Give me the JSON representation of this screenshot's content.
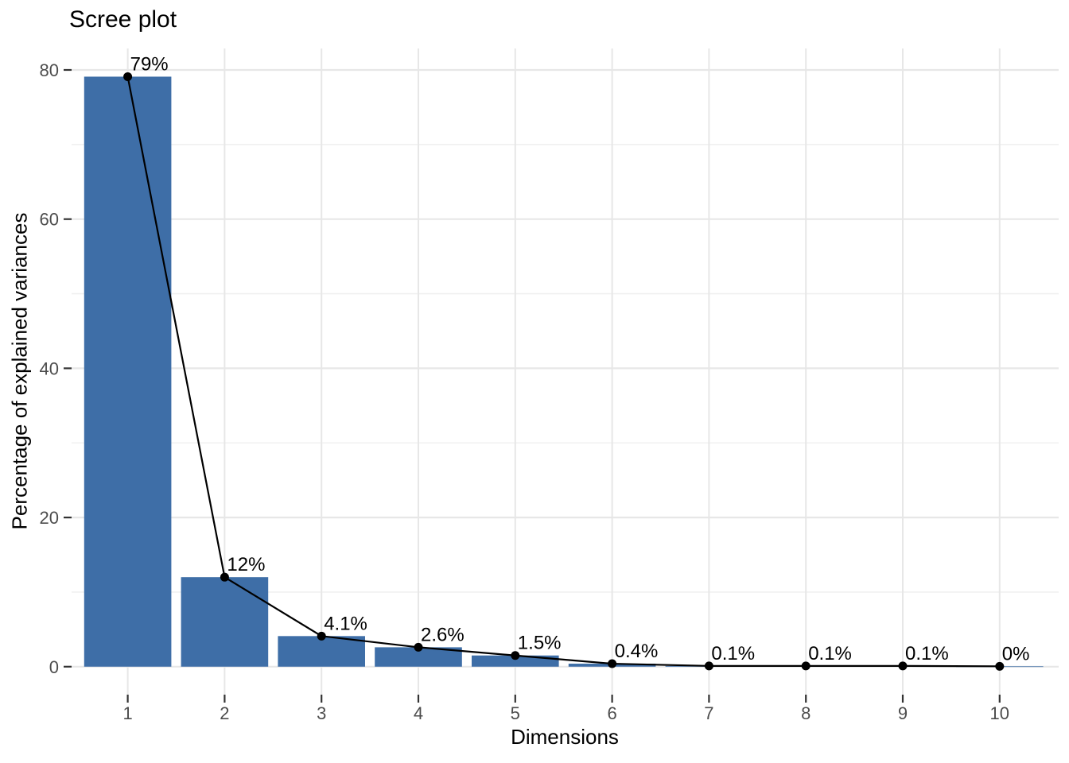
{
  "chart_data": {
    "type": "bar+line",
    "title": "Scree plot",
    "xlabel": "Dimensions",
    "ylabel": "Percentage of explained variances",
    "categories": [
      "1",
      "2",
      "3",
      "4",
      "5",
      "6",
      "7",
      "8",
      "9",
      "10"
    ],
    "values": [
      79.1,
      12,
      4.1,
      2.6,
      1.5,
      0.4,
      0.1,
      0.1,
      0.1,
      0.05
    ],
    "point_labels": [
      "79%",
      "12%",
      "4.1%",
      "2.6%",
      "1.5%",
      "0.4%",
      "0.1%",
      "0.1%",
      "0.1%",
      "0%"
    ],
    "y_ticks": [
      0,
      20,
      40,
      60,
      80
    ],
    "y_minor_gridlines": [
      10,
      30,
      50,
      70
    ],
    "ylim": [
      0,
      83
    ],
    "bar_width_fraction": 0.9,
    "grid": true,
    "legend": "none",
    "colors": {
      "bar_fill": "#3E6EA7",
      "line": "#000000",
      "point": "#000000",
      "label_text": "#000000",
      "grid_major": "#E7E7E7",
      "grid_minor": "#F0F0F0",
      "tick_mark": "#333333",
      "tick_label": "#4D4D4D",
      "background": "#FFFFFF"
    }
  }
}
